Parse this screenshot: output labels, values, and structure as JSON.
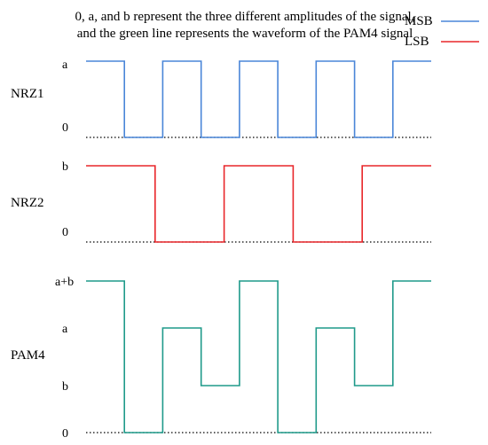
{
  "caption": {
    "line1": "0, a, and b represent the three different amplitudes of the signal,",
    "line2": "and the green line represents the waveform of the PAM4 signal"
  },
  "legend": [
    {
      "label": "MSB",
      "color": "#4a86d8"
    },
    {
      "label": "LSB",
      "color": "#e8262a"
    }
  ],
  "nrz1": {
    "label": "NRZ1",
    "levels": [
      "0",
      "a"
    ],
    "bits": [
      1,
      0,
      1,
      0,
      1,
      0,
      1,
      0,
      1
    ],
    "color": "#4a86d8"
  },
  "nrz2": {
    "label": "NRZ2",
    "levels": [
      "0",
      "b"
    ],
    "bits": [
      1,
      0,
      1,
      0,
      1
    ],
    "color": "#e8262a"
  },
  "pam4": {
    "label": "PAM4",
    "levels": [
      "0",
      "b",
      "a",
      "a+b"
    ],
    "symbols": [
      3,
      0,
      2,
      1,
      3,
      0,
      2,
      1,
      3
    ],
    "color": "#1f9a8a"
  }
}
